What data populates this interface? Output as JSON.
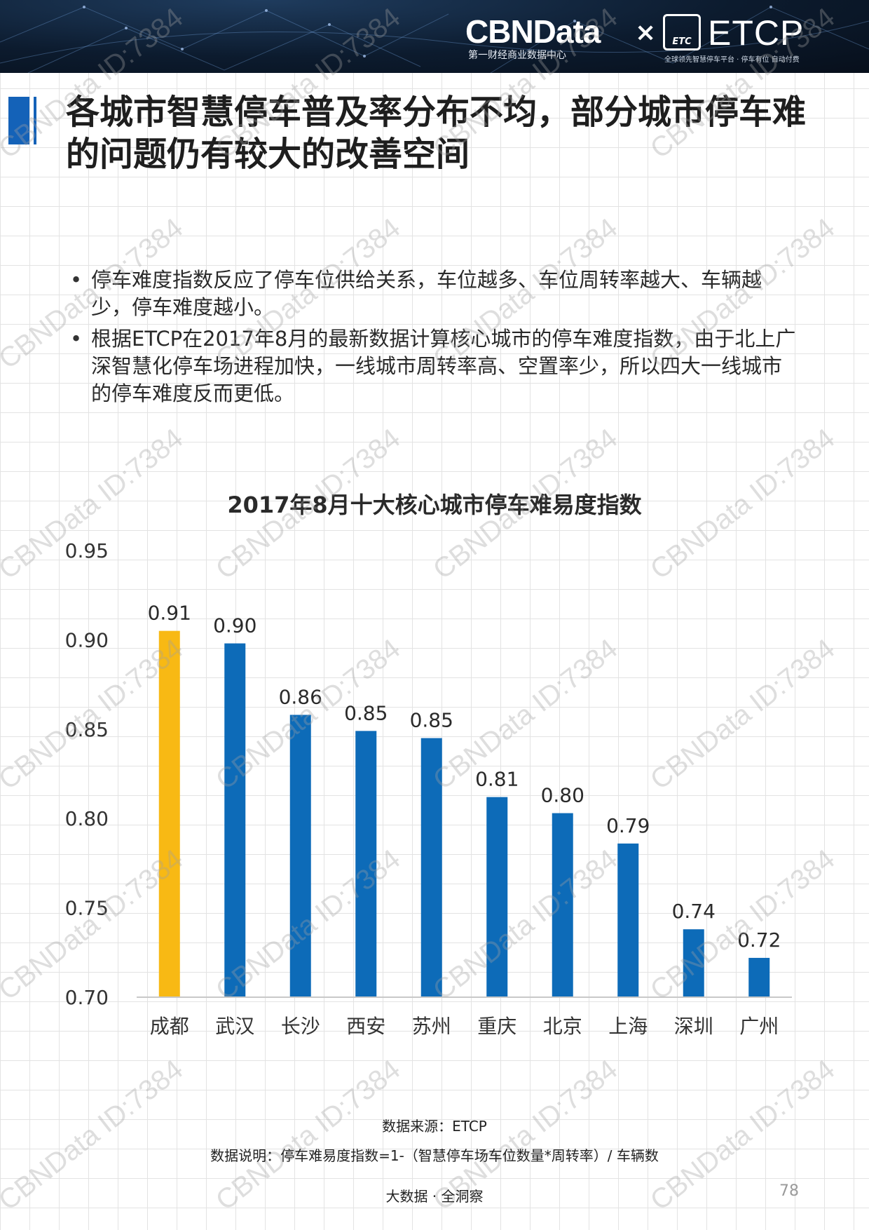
{
  "header": {
    "brand": "CBNData",
    "brand_sub": "第一财经商业数据中心",
    "times": "×",
    "partner_logo_text": "ETC",
    "partner": "ETCP",
    "partner_sub": "全球领先智慧停车平台 · 停车有位 自动付费"
  },
  "title": "各城市智慧停车普及率分布不均，部分城市停车难的问题仍有较大的改善空间",
  "bullets": [
    "停车难度指数反应了停车位供给关系，车位越多、车位周转率越大、车辆越少，停车难度越小。",
    "根据ETCP在2017年8月的最新数据计算核心城市的停车难度指数，由于北上广深智慧化停车场进程加快，一线城市周转率高、空置率少，所以四大一线城市的停车难度反而更低。"
  ],
  "chart_data": {
    "type": "bar",
    "title": "2017年8月十大核心城市停车难易度指数",
    "categories": [
      "成都",
      "武汉",
      "长沙",
      "西安",
      "苏州",
      "重庆",
      "北京",
      "上海",
      "深圳",
      "广州"
    ],
    "values": [
      0.905,
      0.898,
      0.858,
      0.849,
      0.845,
      0.812,
      0.803,
      0.786,
      0.738,
      0.722
    ],
    "value_labels": [
      "0.91",
      "0.90",
      "0.86",
      "0.85",
      "0.85",
      "0.81",
      "0.80",
      "0.79",
      "0.74",
      "0.72"
    ],
    "ylim": [
      0.7,
      0.95
    ],
    "yticks": [
      "0.95",
      "0.90",
      "0.85",
      "0.80",
      "0.75",
      "0.70"
    ],
    "xlabel": "",
    "ylabel": "",
    "highlight_index": 0,
    "colors": {
      "highlight": "#f8b914",
      "bar": "#0d6bb8"
    },
    "grid": false,
    "legend": "none"
  },
  "watermark": "CBNData ID:7384",
  "source": "数据来源：ETCP",
  "note": "数据说明：停车难易度指数=1-（智慧停车场车位数量*周转率）/ 车辆数",
  "footer": "大数据 · 全洞察",
  "page_number": "78",
  "colors": {
    "accent": "#1462b8",
    "header_bg": "#0c1b2e"
  }
}
